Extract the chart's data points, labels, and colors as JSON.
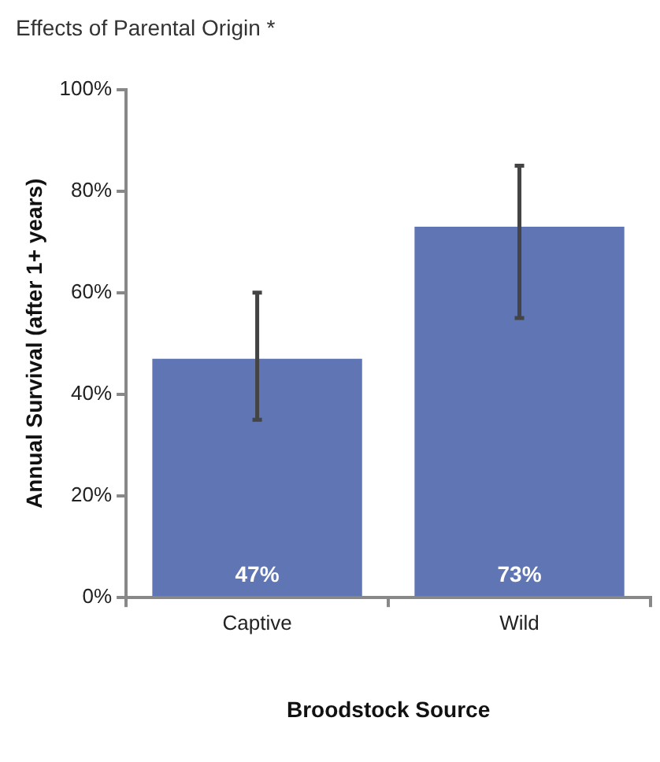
{
  "chart_data": {
    "type": "bar",
    "title": "Effects of Parental Origin *",
    "xlabel": "Broodstock Source",
    "ylabel": "Annual Survival (after 1+ years)",
    "categories": [
      "Captive",
      "Wild"
    ],
    "values": [
      47,
      73
    ],
    "color": "#5f75b4",
    "errors": [
      [
        35,
        60
      ],
      [
        55,
        85
      ]
    ],
    "value_labels": [
      "47%",
      "73%"
    ],
    "ylim": [
      0,
      100
    ],
    "yticks": [
      {
        "value": 0,
        "label": "0%"
      },
      {
        "value": 20,
        "label": "20%"
      },
      {
        "value": 40,
        "label": "40%"
      },
      {
        "value": 60,
        "label": "60%"
      },
      {
        "value": 80,
        "label": "80%"
      },
      {
        "value": 100,
        "label": "100%"
      }
    ],
    "grid": false,
    "legend": false
  }
}
